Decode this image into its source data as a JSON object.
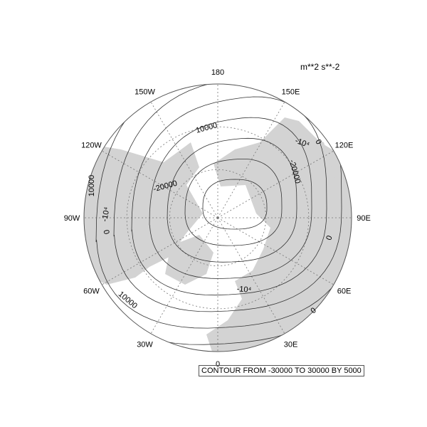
{
  "units_label": "m**2 s**-2",
  "info_label": "CONTOUR FROM -30000 TO 30000 BY 5000",
  "projection": "polar stereographic, north pole",
  "colors": {
    "land": "#d3d3d3",
    "contour": "#333333",
    "grid": "#777777"
  },
  "longitude_labels": [
    {
      "lon": 180,
      "text": "180"
    },
    {
      "lon": 150,
      "text": "150E"
    },
    {
      "lon": 120,
      "text": "120E"
    },
    {
      "lon": 90,
      "text": "90E"
    },
    {
      "lon": 60,
      "text": "60E"
    },
    {
      "lon": 30,
      "text": "30E"
    },
    {
      "lon": 0,
      "text": "0"
    },
    {
      "lon": -30,
      "text": "30W"
    },
    {
      "lon": -60,
      "text": "60W"
    },
    {
      "lon": -90,
      "text": "90W"
    },
    {
      "lon": -120,
      "text": "120W"
    },
    {
      "lon": -150,
      "text": "150W"
    }
  ],
  "contour_levels": {
    "min": -30000,
    "max": 30000,
    "step": 5000
  },
  "contour_labels": [
    "10000",
    "-10⁴",
    "0",
    "-20000",
    "-20000",
    "10000",
    "-10⁴",
    "0",
    "-10⁴",
    "10000",
    "0",
    "0"
  ]
}
